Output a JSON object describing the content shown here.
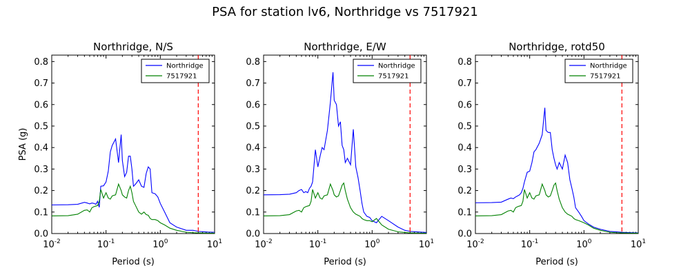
{
  "figure": {
    "title": "PSA for station lv6, Northridge vs 7517921"
  },
  "chart_data": [
    {
      "type": "line",
      "title": "Northridge, N/S",
      "xlabel": "Period (s)",
      "ylabel": "PSA (g)",
      "xscale": "log",
      "xlim": [
        0.01,
        10
      ],
      "ylim": [
        0,
        0.83
      ],
      "x_ticks": [
        0.01,
        0.1,
        1,
        10
      ],
      "x_tick_labels": [
        [
          "10",
          "-2"
        ],
        [
          "10",
          "-1"
        ],
        [
          "10",
          "0"
        ],
        [
          "10",
          "1"
        ]
      ],
      "y_ticks": [
        "0.0",
        "0.1",
        "0.2",
        "0.3",
        "0.4",
        "0.5",
        "0.6",
        "0.7",
        "0.8"
      ],
      "legend_position": "top-right",
      "vline": {
        "x": 5,
        "color": "#ff0000",
        "style": "dashed"
      },
      "series": [
        {
          "name": "Northridge",
          "color": "#0000ff",
          "x": [
            0.01,
            0.02,
            0.03,
            0.04,
            0.045,
            0.05,
            0.055,
            0.06,
            0.065,
            0.07,
            0.075,
            0.08,
            0.09,
            0.1,
            0.11,
            0.12,
            0.13,
            0.15,
            0.17,
            0.19,
            0.2,
            0.22,
            0.24,
            0.26,
            0.28,
            0.3,
            0.32,
            0.35,
            0.4,
            0.45,
            0.5,
            0.55,
            0.6,
            0.65,
            0.7,
            0.8,
            0.9,
            1.0,
            1.2,
            1.5,
            2,
            3,
            4,
            5,
            7.5,
            10
          ],
          "y": [
            0.133,
            0.134,
            0.136,
            0.145,
            0.142,
            0.138,
            0.142,
            0.14,
            0.136,
            0.15,
            0.122,
            0.22,
            0.222,
            0.24,
            0.29,
            0.38,
            0.41,
            0.44,
            0.33,
            0.46,
            0.34,
            0.265,
            0.285,
            0.36,
            0.36,
            0.3,
            0.22,
            0.23,
            0.25,
            0.22,
            0.215,
            0.28,
            0.31,
            0.3,
            0.19,
            0.185,
            0.17,
            0.14,
            0.1,
            0.05,
            0.03,
            0.015,
            0.015,
            0.01,
            0.007,
            0.006
          ]
        },
        {
          "name": "7517921",
          "color": "#008000",
          "x": [
            0.01,
            0.02,
            0.03,
            0.04,
            0.045,
            0.05,
            0.055,
            0.06,
            0.065,
            0.07,
            0.075,
            0.08,
            0.09,
            0.1,
            0.11,
            0.12,
            0.13,
            0.15,
            0.17,
            0.19,
            0.2,
            0.22,
            0.24,
            0.26,
            0.28,
            0.3,
            0.32,
            0.35,
            0.4,
            0.45,
            0.5,
            0.55,
            0.6,
            0.65,
            0.7,
            0.8,
            0.9,
            1.0,
            1.2,
            1.5,
            2,
            3,
            4,
            5,
            7.5,
            10
          ],
          "y": [
            0.082,
            0.083,
            0.09,
            0.108,
            0.11,
            0.1,
            0.12,
            0.125,
            0.128,
            0.13,
            0.15,
            0.205,
            0.165,
            0.19,
            0.165,
            0.16,
            0.175,
            0.18,
            0.23,
            0.2,
            0.18,
            0.17,
            0.165,
            0.2,
            0.22,
            0.19,
            0.15,
            0.13,
            0.1,
            0.09,
            0.1,
            0.088,
            0.085,
            0.07,
            0.065,
            0.065,
            0.06,
            0.05,
            0.04,
            0.025,
            0.015,
            0.006,
            0.004,
            0.003,
            0.002,
            0.002
          ]
        }
      ]
    },
    {
      "type": "line",
      "title": "Northridge, E/W",
      "xlabel": "Period (s)",
      "ylabel": "",
      "xscale": "log",
      "xlim": [
        0.01,
        10
      ],
      "ylim": [
        0,
        0.83
      ],
      "x_ticks": [
        0.01,
        0.1,
        1,
        10
      ],
      "x_tick_labels": [
        [
          "10",
          "-2"
        ],
        [
          "10",
          "-1"
        ],
        [
          "10",
          "0"
        ],
        [
          "10",
          "1"
        ]
      ],
      "y_ticks": [
        "0.0",
        "0.1",
        "0.2",
        "0.3",
        "0.4",
        "0.5",
        "0.6",
        "0.7",
        "0.8"
      ],
      "legend_position": "top-right",
      "vline": {
        "x": 5,
        "color": "#ff0000",
        "style": "dashed"
      },
      "series": [
        {
          "name": "Northridge",
          "color": "#0000ff",
          "x": [
            0.01,
            0.02,
            0.03,
            0.04,
            0.045,
            0.05,
            0.055,
            0.06,
            0.065,
            0.07,
            0.075,
            0.08,
            0.09,
            0.1,
            0.11,
            0.12,
            0.13,
            0.15,
            0.17,
            0.19,
            0.2,
            0.22,
            0.24,
            0.26,
            0.28,
            0.3,
            0.32,
            0.35,
            0.4,
            0.45,
            0.5,
            0.55,
            0.6,
            0.65,
            0.7,
            0.8,
            0.9,
            1.0,
            1.2,
            1.5,
            2,
            3,
            4,
            5,
            7.5,
            10
          ],
          "y": [
            0.18,
            0.181,
            0.183,
            0.19,
            0.2,
            0.205,
            0.19,
            0.195,
            0.19,
            0.21,
            0.22,
            0.24,
            0.39,
            0.31,
            0.36,
            0.4,
            0.39,
            0.48,
            0.61,
            0.75,
            0.62,
            0.6,
            0.5,
            0.52,
            0.41,
            0.39,
            0.33,
            0.35,
            0.32,
            0.485,
            0.31,
            0.26,
            0.2,
            0.14,
            0.1,
            0.08,
            0.075,
            0.06,
            0.05,
            0.08,
            0.06,
            0.03,
            0.015,
            0.01,
            0.007,
            0.005
          ]
        },
        {
          "name": "7517921",
          "color": "#008000",
          "x": [
            0.01,
            0.02,
            0.03,
            0.04,
            0.045,
            0.05,
            0.055,
            0.06,
            0.065,
            0.07,
            0.075,
            0.08,
            0.09,
            0.1,
            0.11,
            0.12,
            0.13,
            0.15,
            0.17,
            0.19,
            0.2,
            0.22,
            0.24,
            0.26,
            0.28,
            0.3,
            0.32,
            0.35,
            0.4,
            0.45,
            0.5,
            0.55,
            0.6,
            0.65,
            0.7,
            0.8,
            0.9,
            1.0,
            1.2,
            1.5,
            2,
            3,
            4,
            5,
            7.5,
            10
          ],
          "y": [
            0.082,
            0.083,
            0.088,
            0.105,
            0.108,
            0.1,
            0.12,
            0.125,
            0.128,
            0.13,
            0.15,
            0.205,
            0.165,
            0.19,
            0.165,
            0.16,
            0.175,
            0.18,
            0.23,
            0.2,
            0.18,
            0.17,
            0.175,
            0.2,
            0.225,
            0.235,
            0.2,
            0.16,
            0.12,
            0.1,
            0.09,
            0.085,
            0.08,
            0.07,
            0.065,
            0.06,
            0.06,
            0.055,
            0.07,
            0.04,
            0.02,
            0.008,
            0.005,
            0.003,
            0.002,
            0.002
          ]
        }
      ]
    },
    {
      "type": "line",
      "title": "Northridge, rotd50",
      "xlabel": "Period (s)",
      "ylabel": "",
      "xscale": "log",
      "xlim": [
        0.01,
        10
      ],
      "ylim": [
        0,
        0.83
      ],
      "x_ticks": [
        0.01,
        0.1,
        1,
        10
      ],
      "x_tick_labels": [
        [
          "10",
          "-2"
        ],
        [
          "10",
          "-1"
        ],
        [
          "10",
          "0"
        ],
        [
          "10",
          "1"
        ]
      ],
      "y_ticks": [
        "0.0",
        "0.1",
        "0.2",
        "0.3",
        "0.4",
        "0.5",
        "0.6",
        "0.7",
        "0.8"
      ],
      "legend_position": "top-right",
      "vline": {
        "x": 5,
        "color": "#ff0000",
        "style": "dashed"
      },
      "series": [
        {
          "name": "Northridge",
          "color": "#0000ff",
          "x": [
            0.01,
            0.02,
            0.03,
            0.04,
            0.045,
            0.05,
            0.055,
            0.06,
            0.065,
            0.07,
            0.075,
            0.08,
            0.09,
            0.1,
            0.11,
            0.12,
            0.13,
            0.15,
            0.17,
            0.19,
            0.2,
            0.22,
            0.24,
            0.26,
            0.28,
            0.3,
            0.32,
            0.35,
            0.4,
            0.45,
            0.5,
            0.55,
            0.6,
            0.65,
            0.7,
            0.8,
            0.9,
            1.0,
            1.2,
            1.5,
            2,
            3,
            4,
            5,
            7.5,
            10
          ],
          "y": [
            0.143,
            0.144,
            0.146,
            0.16,
            0.165,
            0.162,
            0.17,
            0.175,
            0.18,
            0.19,
            0.21,
            0.24,
            0.285,
            0.29,
            0.33,
            0.38,
            0.39,
            0.42,
            0.46,
            0.585,
            0.48,
            0.47,
            0.47,
            0.39,
            0.35,
            0.32,
            0.3,
            0.33,
            0.3,
            0.365,
            0.33,
            0.25,
            0.21,
            0.17,
            0.12,
            0.1,
            0.08,
            0.06,
            0.045,
            0.03,
            0.02,
            0.01,
            0.008,
            0.006,
            0.004,
            0.003
          ]
        },
        {
          "name": "7517921",
          "color": "#008000",
          "x": [
            0.01,
            0.02,
            0.03,
            0.04,
            0.045,
            0.05,
            0.055,
            0.06,
            0.065,
            0.07,
            0.075,
            0.08,
            0.09,
            0.1,
            0.11,
            0.12,
            0.13,
            0.15,
            0.17,
            0.19,
            0.2,
            0.22,
            0.24,
            0.26,
            0.28,
            0.3,
            0.32,
            0.35,
            0.4,
            0.45,
            0.5,
            0.55,
            0.6,
            0.65,
            0.7,
            0.8,
            0.9,
            1.0,
            1.2,
            1.5,
            2,
            3,
            4,
            5,
            7.5,
            10
          ],
          "y": [
            0.082,
            0.083,
            0.088,
            0.105,
            0.108,
            0.1,
            0.12,
            0.125,
            0.128,
            0.13,
            0.15,
            0.205,
            0.165,
            0.19,
            0.165,
            0.16,
            0.175,
            0.18,
            0.23,
            0.2,
            0.18,
            0.17,
            0.175,
            0.2,
            0.225,
            0.235,
            0.2,
            0.16,
            0.12,
            0.1,
            0.09,
            0.085,
            0.08,
            0.07,
            0.065,
            0.06,
            0.055,
            0.05,
            0.04,
            0.025,
            0.015,
            0.006,
            0.004,
            0.003,
            0.002,
            0.002
          ]
        }
      ]
    }
  ]
}
